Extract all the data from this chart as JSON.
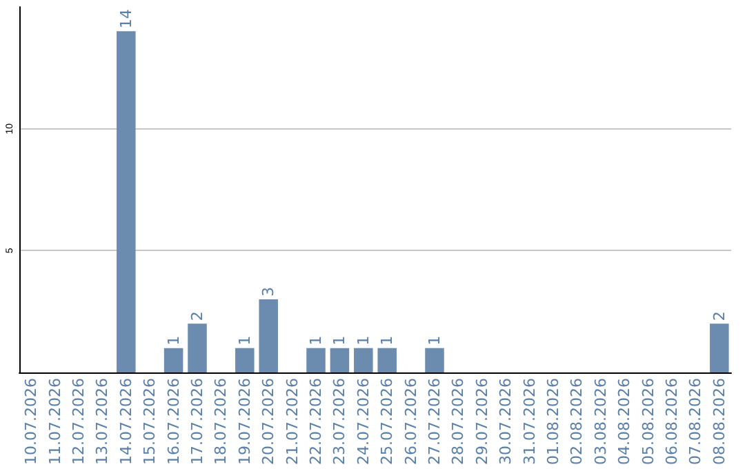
{
  "chart_data": {
    "type": "bar",
    "categories": [
      "10.07.2026",
      "11.07.2026",
      "12.07.2026",
      "13.07.2026",
      "14.07.2026",
      "15.07.2026",
      "16.07.2026",
      "17.07.2026",
      "18.07.2026",
      "19.07.2026",
      "20.07.2026",
      "21.07.2026",
      "22.07.2026",
      "23.07.2026",
      "24.07.2026",
      "25.07.2026",
      "26.07.2026",
      "27.07.2026",
      "28.07.2026",
      "29.07.2026",
      "30.07.2026",
      "31.07.2026",
      "01.08.2026",
      "02.08.2026",
      "03.08.2026",
      "04.08.2026",
      "05.08.2026",
      "06.08.2026",
      "07.08.2026",
      "08.08.2026"
    ],
    "values": [
      0,
      0,
      0,
      0,
      14,
      0,
      1,
      2,
      0,
      1,
      3,
      0,
      1,
      1,
      1,
      1,
      0,
      1,
      0,
      0,
      0,
      0,
      0,
      0,
      0,
      0,
      0,
      0,
      0,
      2
    ],
    "value_labels": [
      null,
      null,
      null,
      null,
      "14",
      null,
      "1",
      "2",
      null,
      "1",
      "3",
      null,
      "1",
      "1",
      "1",
      "1",
      null,
      "1",
      null,
      null,
      null,
      null,
      null,
      null,
      null,
      null,
      null,
      null,
      null,
      "2"
    ],
    "color": "#6b8cae",
    "ylim": [
      0,
      15
    ],
    "yticks": [
      {
        "value": 0,
        "label": null
      },
      5,
      10
    ],
    "grid": "y"
  }
}
